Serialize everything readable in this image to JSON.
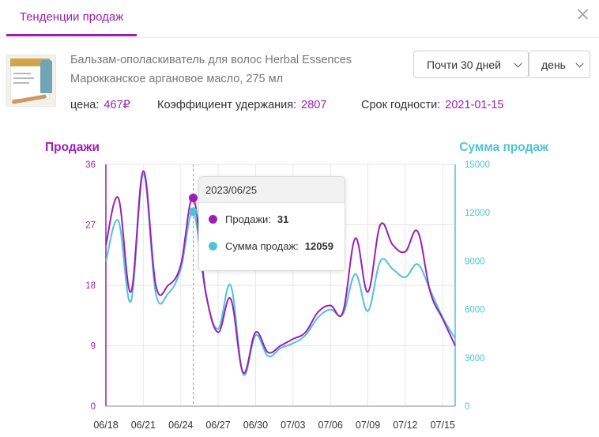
{
  "tab": {
    "label": "Тенденции продаж"
  },
  "product": {
    "name_line1": "Бальзам-ополаскиватель для волос Herbal Essences",
    "name_line2": "Марокканское аргановое масло, 275 мл",
    "price_label": "цена:",
    "price_value": "467₽",
    "retention_label": "Коэффициент удержания:",
    "retention_value": "2807",
    "expiry_label": "Срок годности:",
    "expiry_value": "2021-01-15"
  },
  "controls": {
    "period": "Почти 30 дней",
    "granularity": "день"
  },
  "tooltip": {
    "date": "2023/06/25",
    "sales_label": "Продажи:",
    "sales_value": "31",
    "amount_label": "Сумма продаж:",
    "amount_value": "12059"
  },
  "colors": {
    "sales": "#9b1fb5",
    "amount": "#4fc3d5",
    "accent": "#9b1fb5"
  },
  "icons": {
    "close": "close-icon",
    "dropdown": "chevron-down-icon"
  },
  "chart_data": {
    "type": "line",
    "left_axis_title": "Продажи",
    "right_axis_title": "Сумма продаж",
    "categories": [
      "06/18",
      "06/19",
      "06/20",
      "06/21",
      "06/22",
      "06/23",
      "06/24",
      "06/25",
      "06/26",
      "06/27",
      "06/28",
      "06/29",
      "06/30",
      "07/01",
      "07/02",
      "07/03",
      "07/04",
      "07/05",
      "07/06",
      "07/07",
      "07/08",
      "07/09",
      "07/10",
      "07/11",
      "07/12",
      "07/13",
      "07/14",
      "07/15",
      "07/16"
    ],
    "xtick_labels": [
      "06/18",
      "06/21",
      "06/24",
      "06/27",
      "06/30",
      "07/03",
      "07/06",
      "07/09",
      "07/12",
      "07/15"
    ],
    "series": [
      {
        "name": "Продажи",
        "axis": "left",
        "values": [
          24,
          31,
          17,
          35,
          18,
          18,
          21,
          31,
          17,
          11,
          16,
          5,
          11,
          8,
          9,
          10,
          11,
          14,
          15,
          14,
          25,
          17,
          27,
          24,
          23,
          26,
          17,
          13,
          9
        ]
      },
      {
        "name": "Сумма продаж",
        "axis": "right",
        "values": [
          9000,
          11500,
          6500,
          14400,
          7000,
          7000,
          8500,
          12059,
          7000,
          4800,
          7500,
          2000,
          4400,
          3100,
          3600,
          3900,
          4400,
          5500,
          6000,
          5700,
          8200,
          5900,
          9000,
          8500,
          8000,
          8800,
          7200,
          5500,
          4200
        ]
      }
    ],
    "y_left": {
      "min": 0,
      "max": 36,
      "ticks": [
        0,
        9,
        18,
        27,
        36
      ]
    },
    "y_right": {
      "min": 0,
      "max": 15000,
      "ticks": [
        0,
        3000,
        6000,
        9000,
        12000,
        15000
      ]
    },
    "highlight_index": 7,
    "grid": true
  }
}
